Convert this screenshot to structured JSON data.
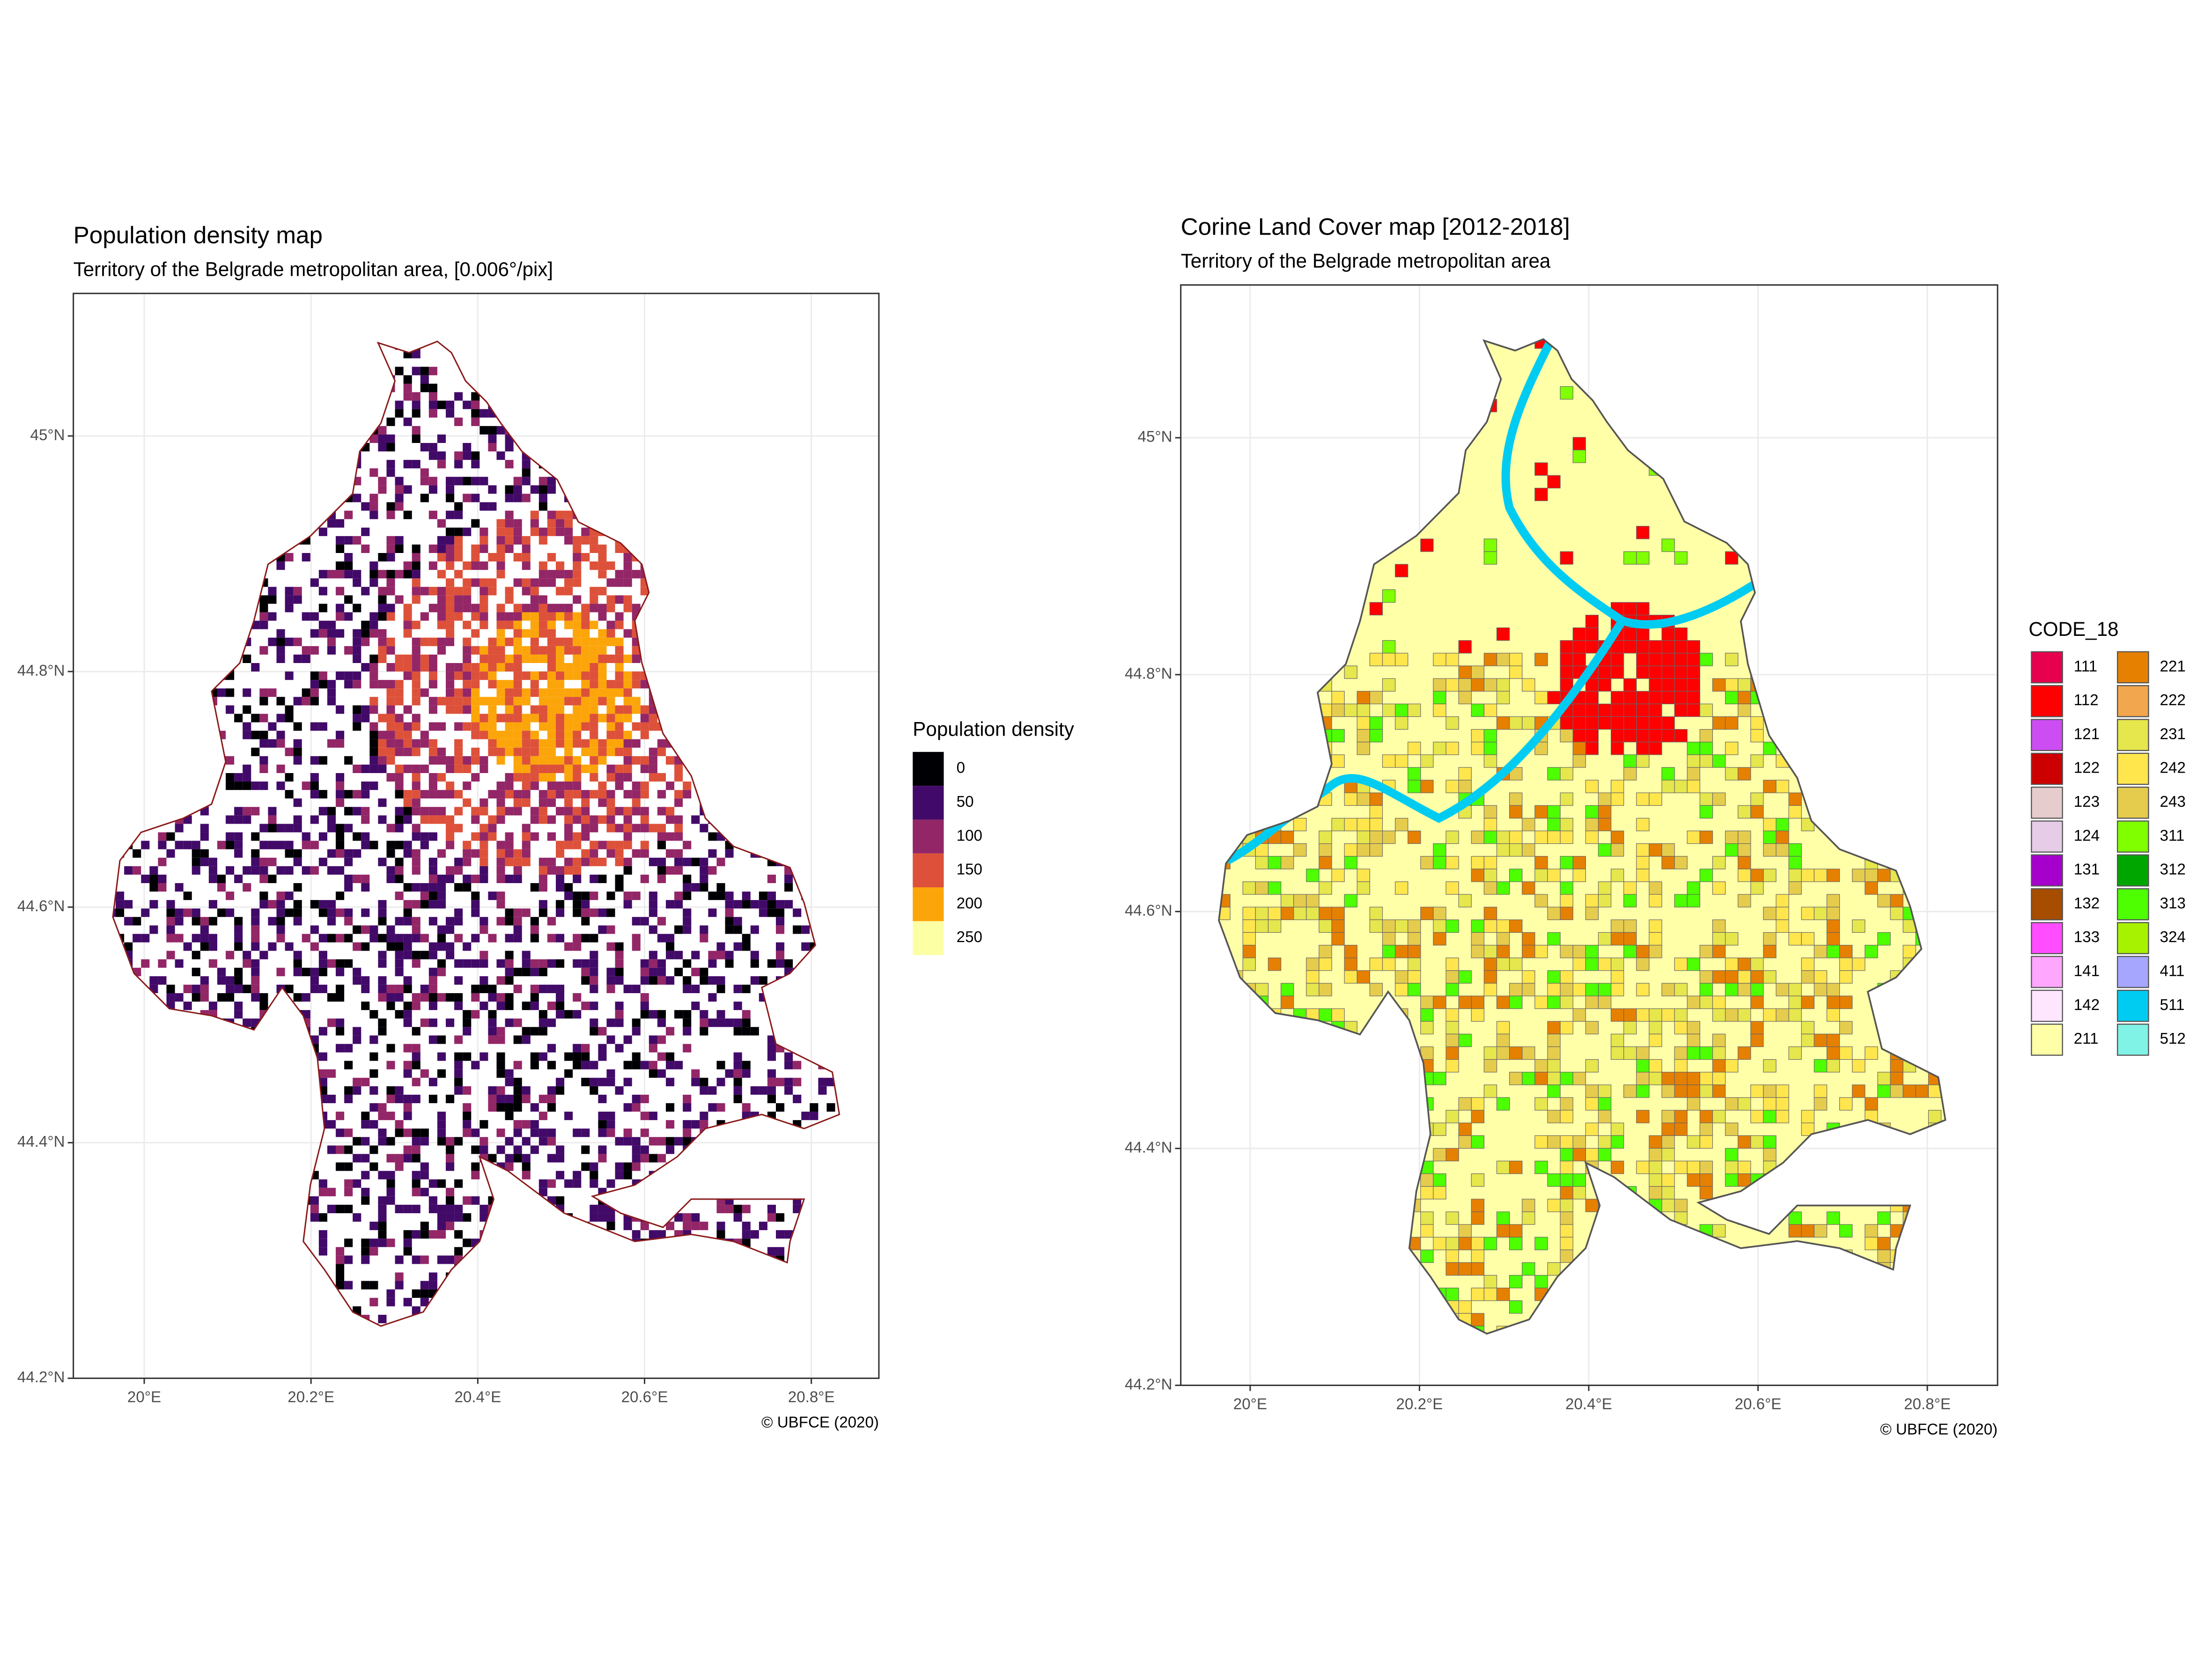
{
  "chart_data": [
    {
      "type": "map",
      "title": "Population density map",
      "subtitle": "Territory of the Belgrade metropolitan area, [0.006°/pix]",
      "caption": "© UBFCE (2020)",
      "xlim": [
        19.915,
        20.881
      ],
      "ylim": [
        44.2,
        45.121
      ],
      "xticks": [
        {
          "value": 20,
          "label": "20°E"
        },
        {
          "value": 20.2,
          "label": "20.2°E"
        },
        {
          "value": 20.4,
          "label": "20.4°E"
        },
        {
          "value": 20.6,
          "label": "20.6°E"
        },
        {
          "value": 20.8,
          "label": "20.8°E"
        }
      ],
      "yticks": [
        {
          "value": 44.2,
          "label": "44.2°N"
        },
        {
          "value": 44.4,
          "label": "44.4°N"
        },
        {
          "value": 44.6,
          "label": "44.6°N"
        },
        {
          "value": 44.8,
          "label": "44.8°N"
        },
        {
          "value": 45,
          "label": "45°N"
        }
      ],
      "grid": true,
      "legend": {
        "title": "Population density",
        "breaks": [
          0,
          50,
          100,
          150,
          200,
          250
        ],
        "colors": [
          "#000004",
          "#420a68",
          "#932667",
          "#dd513a",
          "#fca50a",
          "#fcffa4"
        ]
      }
    },
    {
      "type": "map",
      "title": "Corine Land Cover map [2012-2018]",
      "subtitle": "Territory of the Belgrade metropolitan area",
      "caption": "© UBFCE (2020)",
      "xlim": [
        19.918,
        20.883
      ],
      "ylim": [
        44.2,
        45.129
      ],
      "xticks": [
        {
          "value": 20,
          "label": "20°E"
        },
        {
          "value": 20.2,
          "label": "20.2°E"
        },
        {
          "value": 20.4,
          "label": "20.4°E"
        },
        {
          "value": 20.6,
          "label": "20.6°E"
        },
        {
          "value": 20.8,
          "label": "20.8°E"
        }
      ],
      "yticks": [
        {
          "value": 44.2,
          "label": "44.2°N"
        },
        {
          "value": 44.4,
          "label": "44.4°N"
        },
        {
          "value": 44.6,
          "label": "44.6°N"
        },
        {
          "value": 44.8,
          "label": "44.8°N"
        },
        {
          "value": 45,
          "label": "45°N"
        }
      ],
      "grid": true,
      "legend": {
        "title": "CODE_18",
        "categories": [
          "111",
          "112",
          "121",
          "122",
          "123",
          "124",
          "131",
          "132",
          "133",
          "141",
          "142",
          "211",
          "221",
          "222",
          "231",
          "242",
          "243",
          "311",
          "312",
          "313",
          "324",
          "411",
          "511",
          "512"
        ],
        "colors": [
          "#e6004d",
          "#ff0000",
          "#cc4df2",
          "#cc0000",
          "#e6cccc",
          "#e6cce6",
          "#a600cc",
          "#a64d00",
          "#ff4dff",
          "#ffa6ff",
          "#ffe6ff",
          "#ffffa8",
          "#e68000",
          "#f2a64d",
          "#e6e64d",
          "#ffe64d",
          "#e6cc4d",
          "#80ff00",
          "#00a600",
          "#4dff00",
          "#a6f200",
          "#a6a6ff",
          "#00ccf2",
          "#80f2e6"
        ]
      }
    }
  ]
}
